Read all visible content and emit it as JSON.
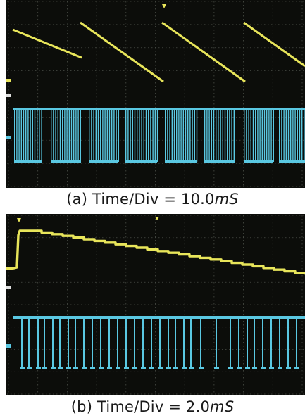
{
  "figures": [
    {
      "id": "a",
      "caption_prefix": "(a)  Time/Div  =  10.0",
      "caption_unit": "mS"
    },
    {
      "id": "b",
      "caption_prefix": "(b)  Time/Div  =  2.0",
      "caption_unit": "mS"
    }
  ],
  "colors": {
    "screen": "#0c0d0a",
    "grid": "#4a4e47",
    "trace_yellow": "#e8e55a",
    "trace_cyan": "#5ac8e2",
    "cursor": "#e0e0e0"
  }
}
